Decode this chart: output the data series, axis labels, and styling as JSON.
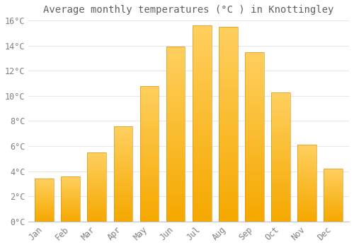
{
  "title": "Average monthly temperatures (°C ) in Knottingley",
  "months": [
    "Jan",
    "Feb",
    "Mar",
    "Apr",
    "May",
    "Jun",
    "Jul",
    "Aug",
    "Sep",
    "Oct",
    "Nov",
    "Dec"
  ],
  "values": [
    3.4,
    3.6,
    5.5,
    7.6,
    10.8,
    13.9,
    15.6,
    15.5,
    13.5,
    10.3,
    6.1,
    4.2
  ],
  "bar_color_top": "#FFD060",
  "bar_color_bottom": "#F5A800",
  "background_color": "#FFFFFF",
  "plot_area_color": "#FFFFFF",
  "grid_color": "#E8E8E8",
  "text_color": "#808080",
  "title_color": "#606060",
  "spine_color": "#C0C0C0",
  "ylim": [
    0,
    16
  ],
  "yticks": [
    0,
    2,
    4,
    6,
    8,
    10,
    12,
    14,
    16
  ],
  "title_fontsize": 10,
  "tick_fontsize": 8.5,
  "bar_width": 0.72
}
